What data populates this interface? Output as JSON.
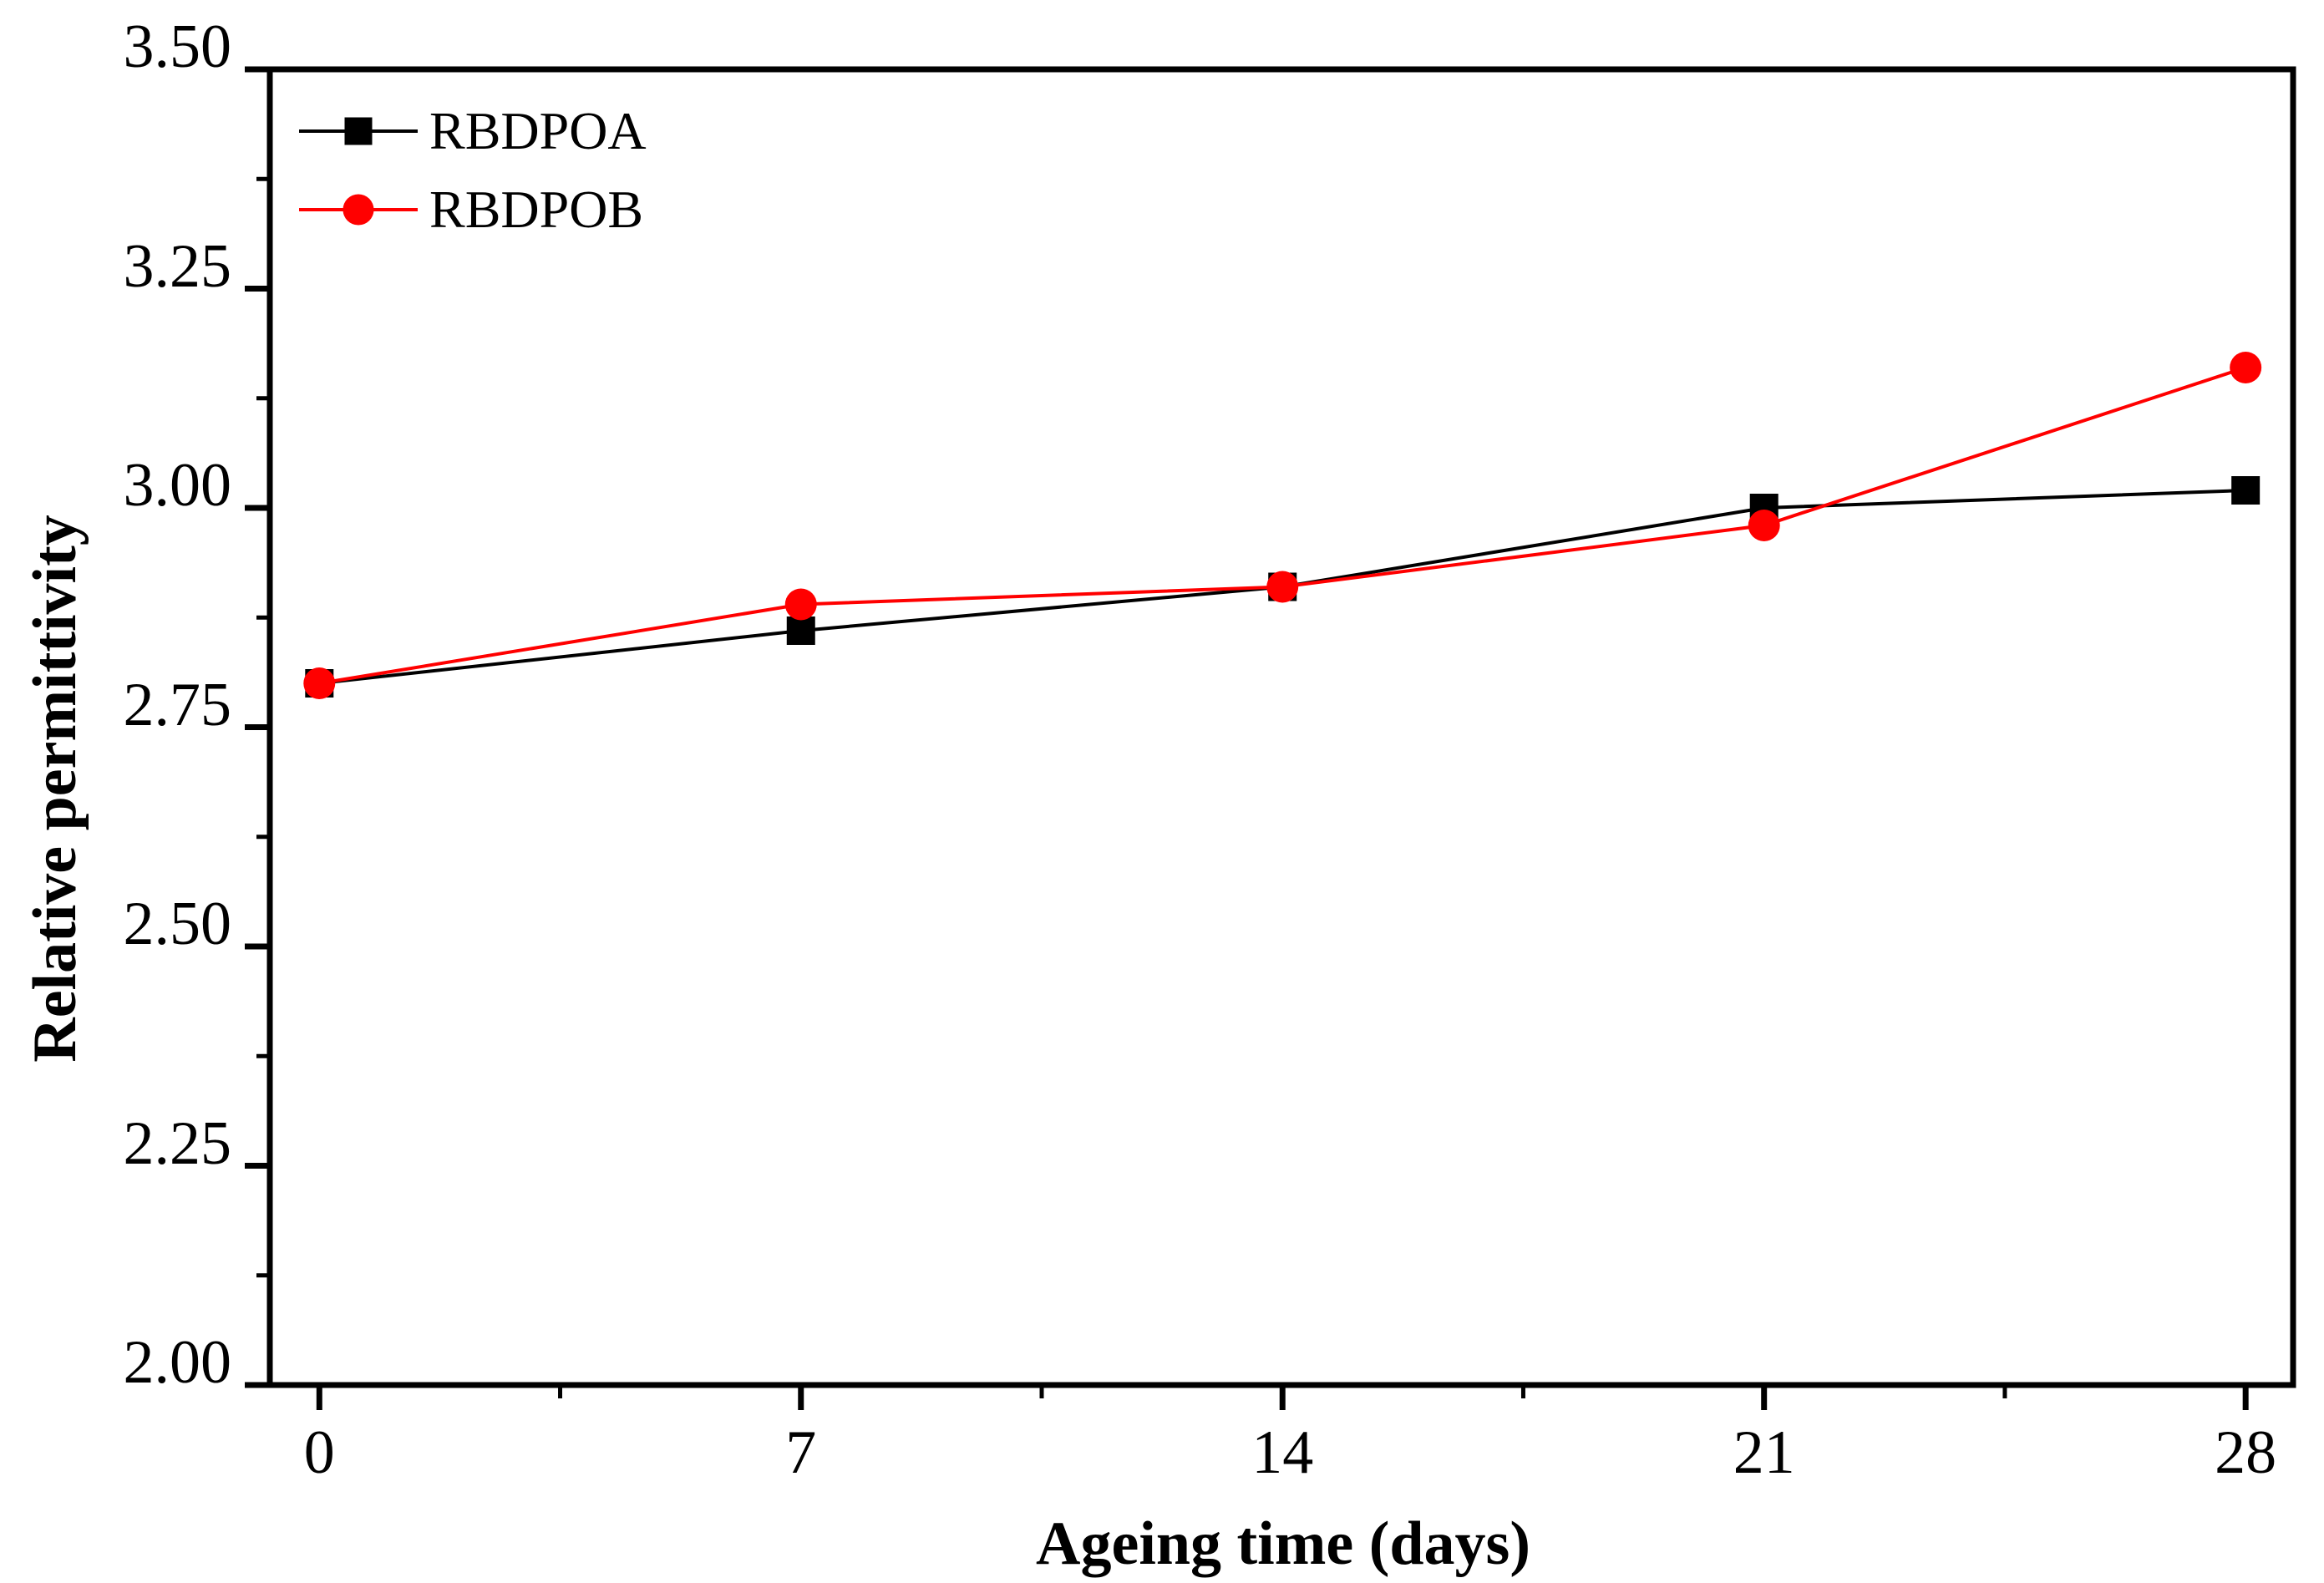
{
  "chart_data": {
    "type": "line",
    "title": "",
    "xlabel": "Ageing time (days)",
    "ylabel": "Relative permittivity",
    "x": [
      0,
      7,
      14,
      21,
      28
    ],
    "xlim": [
      -0.72,
      28.69
    ],
    "ylim": [
      2.0,
      3.5
    ],
    "xticks": [
      0,
      7,
      14,
      21,
      28
    ],
    "xtick_labels": [
      "0",
      "7",
      "14",
      "21",
      "28"
    ],
    "x_minor_ticks": [
      3.5,
      10.5,
      17.5,
      24.5
    ],
    "yticks": [
      2.0,
      2.25,
      2.5,
      2.75,
      3.0,
      3.25,
      3.5
    ],
    "ytick_labels": [
      "2.00",
      "2.25",
      "2.50",
      "2.75",
      "3.00",
      "3.25",
      "3.50"
    ],
    "y_minor_ticks": [
      2.125,
      2.375,
      2.625,
      2.875,
      3.125,
      3.375
    ],
    "grid": false,
    "legend_position": "top-left-inside",
    "series": [
      {
        "name": "RBDPOA",
        "color": "#000000",
        "marker": "square",
        "values": [
          2.8,
          2.86,
          2.91,
          3.0,
          3.02
        ]
      },
      {
        "name": "RBDPOB",
        "color": "#ff0000",
        "marker": "circle",
        "values": [
          2.8,
          2.89,
          2.91,
          2.98,
          3.16
        ]
      }
    ]
  },
  "colors": {
    "background": "#ffffff",
    "axis": "#000000",
    "series_a": "#000000",
    "series_b": "#ff0000"
  }
}
